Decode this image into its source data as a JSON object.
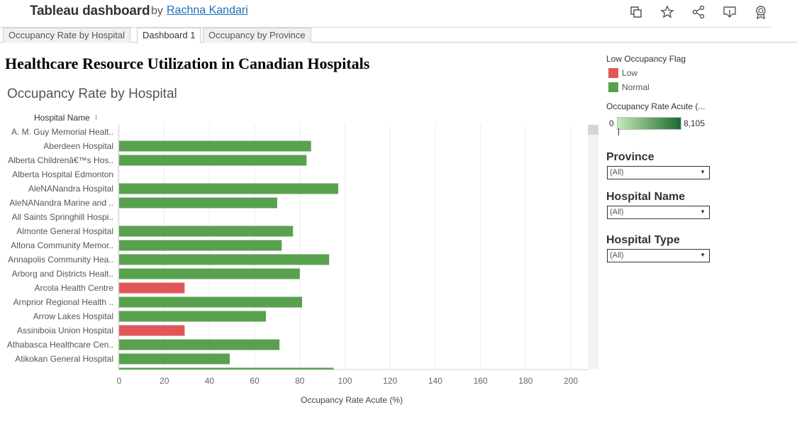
{
  "header": {
    "title": "Tableau dashboard",
    "by": "by",
    "author": "Rachna Kandari",
    "icons": [
      "duplicate-icon",
      "favorite-star-icon",
      "share-icon",
      "download-icon",
      "badge-icon"
    ]
  },
  "tabs": [
    {
      "label": "Occupancy Rate by Hospital",
      "active": false
    },
    {
      "label": "Dashboard 1",
      "active": true
    },
    {
      "label": "Occupancy by Province",
      "active": false
    }
  ],
  "dashboard_title": "Healthcare Resource Utilization in Canadian Hospitals",
  "chart": {
    "title": "Occupancy Rate by Hospital",
    "column_header": "Hospital Name",
    "sort_glyph": "↕",
    "axis_title": "Occupancy Rate Acute (%)"
  },
  "chart_data": {
    "type": "bar",
    "orientation": "horizontal",
    "title": "Occupancy Rate by Hospital",
    "xlabel": "Occupancy Rate Acute (%)",
    "ylabel": "Hospital Name",
    "xlim": [
      0,
      210
    ],
    "x_ticks": [
      0,
      20,
      40,
      60,
      80,
      100,
      120,
      140,
      160,
      180,
      200
    ],
    "grid": "vertical",
    "categories": [
      "A. M. Guy Memorial Healt..",
      "Aberdeen Hospital",
      "Alberta Childrenâ€™s Hos..",
      "Alberta Hospital Edmonton",
      "AleNANandra Hospital",
      "AleNANandra Marine and ..",
      "All Saints Springhill Hospi..",
      "Almonte General Hospital",
      "Altona Community Memor..",
      "Annapolis Community Hea..",
      "Arborg and Districts Healt..",
      "Arcola Health Centre",
      "Arnprior Regional Health ..",
      "Arrow Lakes Hospital",
      "Assiniboia Union Hospital",
      "Athabasca Healthcare Cen..",
      "Atikokan General Hospital"
    ],
    "values": [
      null,
      85,
      83,
      null,
      97,
      70,
      null,
      77,
      72,
      93,
      80,
      29,
      81,
      65,
      29,
      71,
      49
    ],
    "flags": [
      "",
      "Normal",
      "Normal",
      "",
      "Normal",
      "Normal",
      "",
      "Normal",
      "Normal",
      "Normal",
      "Normal",
      "Low",
      "Normal",
      "Normal",
      "Low",
      "Normal",
      "Normal"
    ],
    "partial_next_value": 95,
    "colors": {
      "Low": "#e15759",
      "Normal": "#59a14f"
    }
  },
  "legend": {
    "title": "Low Occupancy Flag",
    "items": [
      {
        "label": "Low",
        "color": "#e15759"
      },
      {
        "label": "Normal",
        "color": "#59a14f"
      }
    ]
  },
  "color_ramp": {
    "title": "Occupancy Rate Acute (...",
    "min": "0",
    "max": "8,105"
  },
  "filters": [
    {
      "title": "Province",
      "value": "(All)"
    },
    {
      "title": "Hospital Name",
      "value": "(All)"
    },
    {
      "title": "Hospital Type",
      "value": "(All)"
    }
  ]
}
